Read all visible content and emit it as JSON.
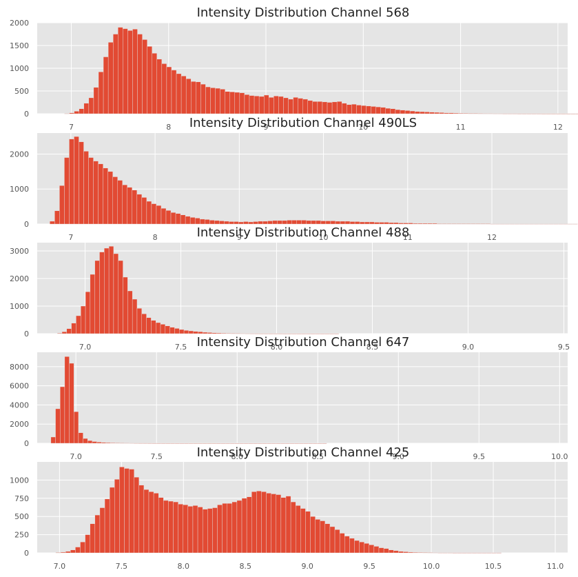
{
  "figure": {
    "background": "#ffffff",
    "plot_background": "#e5e5e5",
    "grid_color": "#ffffff",
    "bar_color": "#e24a33"
  },
  "chart_data": [
    {
      "type": "bar",
      "title": "Intensity Distribution Channel 568",
      "xlabel": "",
      "ylabel": "",
      "grid": true,
      "xlim": [
        6.65,
        12.1
      ],
      "ylim": [
        0,
        2000
      ],
      "xticks": [
        7,
        8,
        9,
        10,
        11,
        12
      ],
      "xtick_labels": [
        "7",
        "8",
        "9",
        "10",
        "11",
        "12"
      ],
      "yticks": [
        0,
        500,
        1000,
        1500,
        2000
      ],
      "ytick_labels": [
        "0",
        "500",
        "1000",
        "1500",
        "2000"
      ],
      "bin_start": 6.93,
      "bin_width": 0.05,
      "values": [
        5,
        20,
        55,
        110,
        230,
        350,
        580,
        920,
        1250,
        1570,
        1750,
        1900,
        1870,
        1830,
        1860,
        1750,
        1630,
        1480,
        1330,
        1200,
        1100,
        1030,
        960,
        880,
        830,
        770,
        710,
        700,
        650,
        590,
        570,
        560,
        540,
        490,
        480,
        470,
        460,
        420,
        400,
        390,
        380,
        410,
        360,
        390,
        380,
        350,
        320,
        360,
        340,
        320,
        290,
        270,
        270,
        260,
        250,
        260,
        270,
        230,
        200,
        210,
        190,
        180,
        170,
        160,
        150,
        140,
        120,
        110,
        90,
        80,
        70,
        60,
        50,
        45,
        40,
        35,
        30,
        25,
        20,
        20,
        15,
        12,
        10,
        8,
        8,
        6,
        5,
        5,
        4,
        4,
        3,
        3,
        3,
        2,
        2,
        2,
        2,
        2,
        1,
        1,
        1,
        1,
        1,
        1,
        1,
        1,
        0,
        0,
        0,
        0
      ]
    },
    {
      "type": "bar",
      "title": "Intensity Distribution Channel 490LS",
      "xlabel": "",
      "ylabel": "",
      "grid": true,
      "xlim": [
        6.6,
        12.9
      ],
      "ylim": [
        0,
        2600
      ],
      "xticks": [
        7,
        8,
        9,
        10,
        11,
        12
      ],
      "xtick_labels": [
        "7",
        "8",
        "9",
        "10",
        "11",
        "12"
      ],
      "yticks": [
        0,
        1000,
        2000
      ],
      "ytick_labels": [
        "0",
        "1000",
        "2000"
      ],
      "bin_start": 6.75,
      "bin_width": 0.0575,
      "values": [
        80,
        380,
        1100,
        1900,
        2430,
        2500,
        2350,
        2080,
        1900,
        1800,
        1720,
        1600,
        1500,
        1350,
        1250,
        1120,
        1050,
        970,
        850,
        760,
        650,
        580,
        530,
        450,
        390,
        330,
        300,
        260,
        220,
        190,
        170,
        140,
        130,
        110,
        100,
        90,
        80,
        70,
        70,
        60,
        70,
        60,
        70,
        80,
        80,
        90,
        100,
        100,
        100,
        110,
        110,
        110,
        110,
        100,
        100,
        100,
        90,
        90,
        90,
        80,
        80,
        80,
        70,
        70,
        60,
        60,
        60,
        50,
        50,
        50,
        40,
        40,
        30,
        30,
        30,
        20,
        20,
        20,
        20,
        20,
        10,
        10,
        10,
        10,
        10,
        10,
        10,
        10,
        10,
        10,
        10,
        5,
        5,
        5,
        5,
        5,
        5,
        5,
        5,
        5,
        5,
        5,
        5,
        5,
        5,
        5,
        5,
        5,
        5
      ]
    },
    {
      "type": "bar",
      "title": "Intensity Distribution Channel 488",
      "xlabel": "",
      "ylabel": "",
      "grid": true,
      "xlim": [
        6.75,
        9.52
      ],
      "ylim": [
        0,
        3300
      ],
      "xticks": [
        7.0,
        7.5,
        8.0,
        8.5,
        9.0,
        9.5
      ],
      "xtick_labels": [
        "7.0",
        "7.5",
        "8.0",
        "8.5",
        "9.0",
        "9.5"
      ],
      "yticks": [
        0,
        1000,
        2000,
        3000
      ],
      "ytick_labels": [
        "0",
        "1000",
        "2000",
        "3000"
      ],
      "bin_start": 6.855,
      "bin_width": 0.0245,
      "values": [
        20,
        70,
        180,
        380,
        650,
        1000,
        1520,
        2150,
        2650,
        2960,
        3100,
        3170,
        2900,
        2650,
        2050,
        1550,
        1250,
        920,
        720,
        580,
        480,
        400,
        340,
        280,
        230,
        190,
        150,
        120,
        100,
        80,
        70,
        50,
        40,
        30,
        25,
        20,
        15,
        12,
        10,
        8,
        6,
        5,
        4,
        3,
        3,
        2,
        2,
        2,
        1,
        1,
        1,
        1,
        1,
        1,
        1,
        1,
        1,
        1,
        1,
        1,
        0,
        0,
        0,
        0,
        0,
        0,
        0,
        0,
        0,
        0,
        0,
        0,
        0,
        0,
        0,
        0,
        0,
        0,
        0,
        0,
        0,
        0,
        0,
        0,
        0,
        0,
        0,
        0,
        0,
        0,
        0,
        0,
        0,
        0,
        0,
        0,
        0,
        0,
        0,
        0,
        0,
        0,
        0,
        0,
        0,
        0,
        0,
        0,
        0,
        0
      ]
    },
    {
      "type": "bar",
      "title": "Intensity Distribution Channel 647",
      "xlabel": "",
      "ylabel": "",
      "grid": true,
      "xlim": [
        6.76,
        10.05
      ],
      "ylim": [
        0,
        9500
      ],
      "xticks": [
        7.0,
        7.5,
        8.0,
        8.5,
        9.0,
        9.5,
        10.0
      ],
      "xtick_labels": [
        "7.0",
        "7.5",
        "8.0",
        "8.5",
        "9.0",
        "9.5",
        "10.0"
      ],
      "yticks": [
        0,
        2000,
        4000,
        6000,
        8000
      ],
      "ytick_labels": [
        "0",
        "2000",
        "4000",
        "6000",
        "8000"
      ],
      "bin_start": 6.845,
      "bin_width": 0.0285,
      "values": [
        650,
        3600,
        5900,
        9050,
        8350,
        3300,
        1100,
        500,
        280,
        180,
        120,
        90,
        70,
        50,
        40,
        30,
        25,
        20,
        15,
        12,
        10,
        8,
        6,
        5,
        5,
        4,
        4,
        3,
        3,
        3,
        2,
        2,
        2,
        2,
        2,
        2,
        1,
        1,
        1,
        1,
        1,
        1,
        1,
        1,
        1,
        1,
        1,
        1,
        1,
        1,
        1,
        1,
        1,
        1,
        1,
        1,
        1,
        1,
        1,
        1,
        0,
        0,
        0,
        0,
        0,
        0,
        0,
        0,
        0,
        0,
        0,
        0,
        0,
        0,
        0,
        0,
        0,
        0,
        0,
        0,
        0,
        0,
        0,
        0,
        0,
        0,
        0,
        0,
        0,
        0,
        0,
        0,
        0,
        0,
        0,
        0,
        0,
        0,
        0,
        0,
        0,
        0,
        0,
        0,
        0,
        0,
        0,
        0,
        0,
        0,
        0
      ]
    },
    {
      "type": "bar",
      "title": "Intensity Distribution Channel 425",
      "xlabel": "",
      "ylabel": "",
      "grid": true,
      "xlim": [
        6.82,
        11.1
      ],
      "ylim": [
        0,
        1250
      ],
      "xticks": [
        7.0,
        7.5,
        8.0,
        8.5,
        9.0,
        9.5,
        10.0,
        10.5,
        11.0
      ],
      "xtick_labels": [
        "7.0",
        "7.5",
        "8.0",
        "8.5",
        "9.0",
        "9.5",
        "10.0",
        "10.5",
        "11.0"
      ],
      "yticks": [
        0,
        250,
        500,
        750,
        1000
      ],
      "ytick_labels": [
        "0",
        "250",
        "500",
        "750",
        "1000"
      ],
      "bin_start": 6.97,
      "bin_width": 0.0395,
      "values": [
        5,
        10,
        20,
        40,
        80,
        150,
        250,
        400,
        520,
        620,
        740,
        900,
        1010,
        1180,
        1160,
        1150,
        1040,
        930,
        870,
        840,
        820,
        760,
        720,
        710,
        700,
        670,
        660,
        640,
        650,
        630,
        600,
        610,
        620,
        660,
        680,
        680,
        700,
        720,
        750,
        770,
        840,
        850,
        840,
        820,
        810,
        800,
        760,
        780,
        700,
        650,
        610,
        570,
        500,
        460,
        440,
        400,
        360,
        320,
        270,
        230,
        200,
        170,
        150,
        130,
        110,
        90,
        70,
        60,
        40,
        30,
        20,
        15,
        10,
        8,
        6,
        5,
        4,
        3,
        2,
        2,
        2,
        1,
        1,
        1,
        1,
        1,
        1,
        1,
        1,
        1,
        1,
        0,
        0,
        0,
        0,
        0,
        0,
        0,
        0,
        0,
        0,
        0,
        0,
        0,
        0,
        0,
        0,
        0
      ]
    }
  ]
}
